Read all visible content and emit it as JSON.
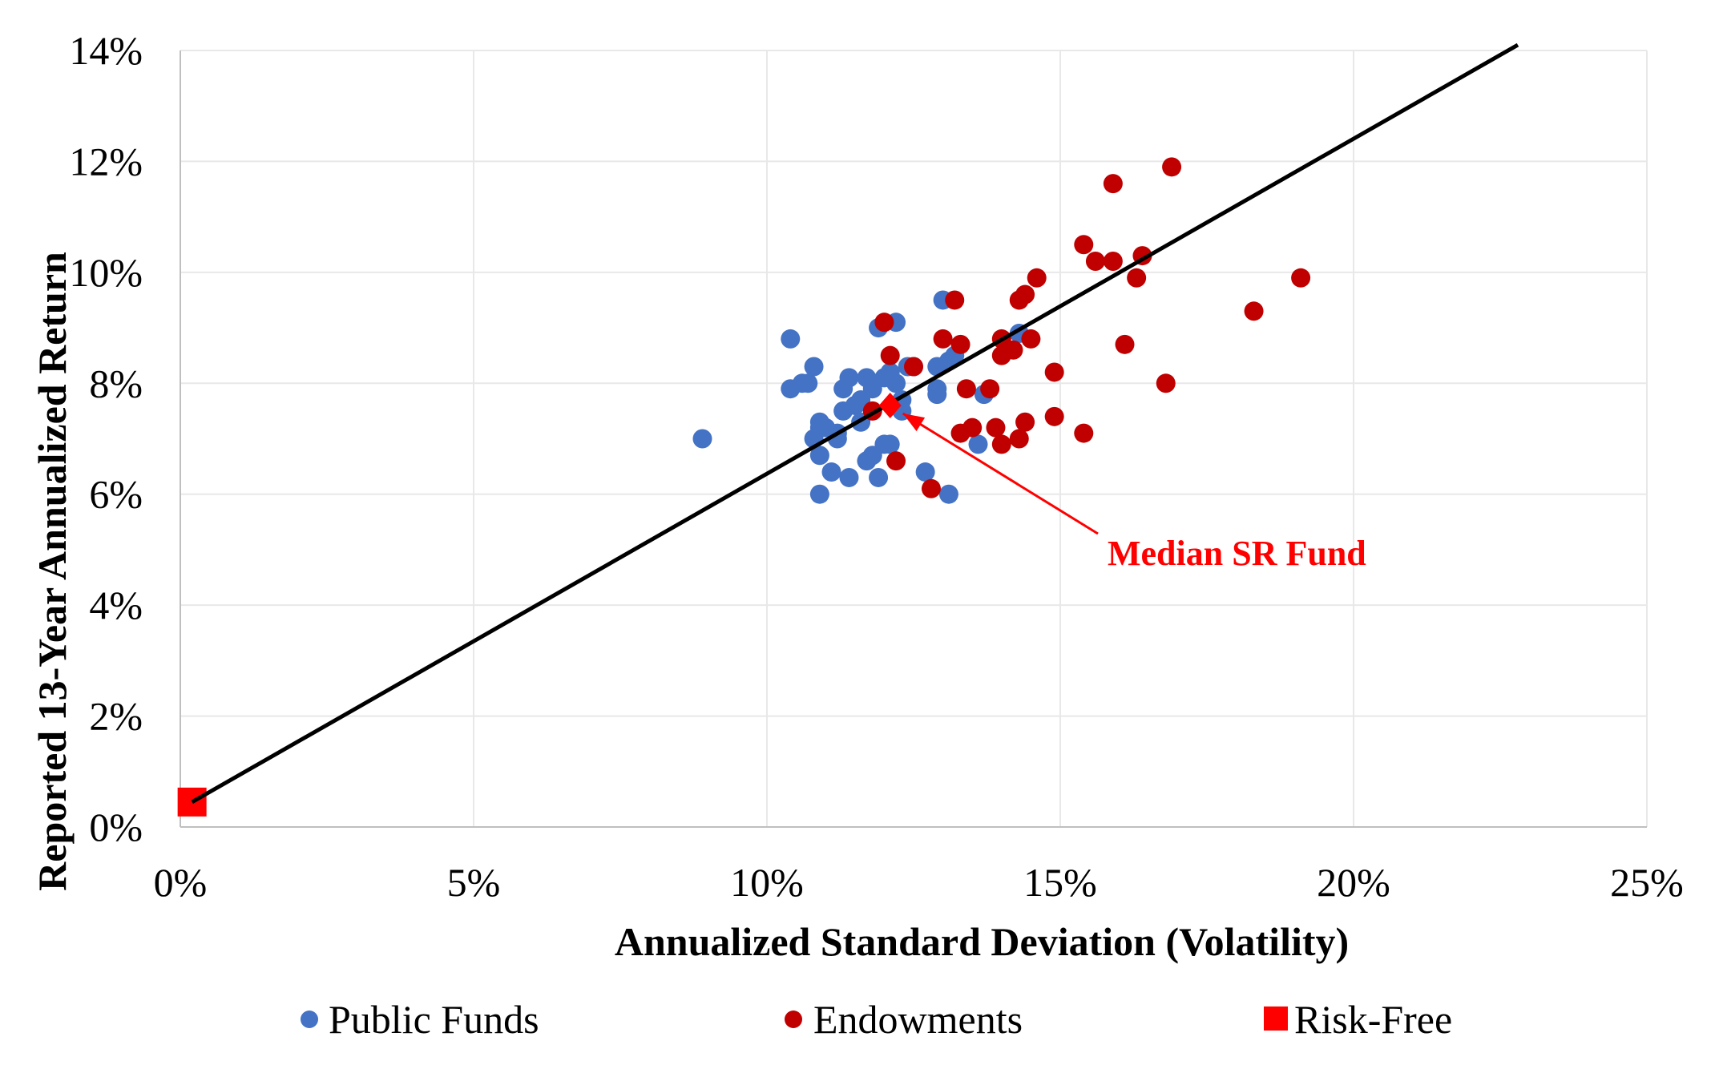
{
  "chart_data": {
    "type": "scatter",
    "title": "",
    "xlabel": "Annualized Standard Deviation (Volatility)",
    "ylabel": "Reported 13-Year Annualized Return",
    "xlim": [
      0,
      25
    ],
    "ylim": [
      0,
      14
    ],
    "x_ticks": [
      "0%",
      "5%",
      "10%",
      "15%",
      "20%",
      "25%"
    ],
    "y_ticks": [
      "0%",
      "2%",
      "4%",
      "6%",
      "8%",
      "10%",
      "12%",
      "14%"
    ],
    "grid": "vertical and horizontal, light",
    "legend_position": "bottom",
    "colors": {
      "public_funds": "#4472C4",
      "endowments": "#C00000",
      "risk_free": "#FF0000",
      "line": "#000000",
      "annotation": "#FF0000",
      "grid": "#E8E8E8",
      "axis": "#BFBFBF"
    },
    "series": [
      {
        "name": "Public Funds",
        "marker": "circle",
        "points": [
          [
            8.9,
            7.0
          ],
          [
            10.4,
            8.8
          ],
          [
            10.4,
            7.9
          ],
          [
            10.6,
            8.0
          ],
          [
            10.7,
            8.0
          ],
          [
            10.8,
            8.3
          ],
          [
            10.8,
            7.0
          ],
          [
            10.9,
            7.2
          ],
          [
            10.9,
            7.3
          ],
          [
            10.9,
            6.7
          ],
          [
            10.9,
            6.0
          ],
          [
            11.0,
            7.2
          ],
          [
            11.1,
            6.4
          ],
          [
            11.2,
            7.1
          ],
          [
            11.2,
            7.0
          ],
          [
            11.3,
            7.5
          ],
          [
            11.3,
            7.9
          ],
          [
            11.4,
            8.1
          ],
          [
            11.4,
            6.3
          ],
          [
            11.5,
            7.6
          ],
          [
            11.6,
            7.3
          ],
          [
            11.6,
            7.7
          ],
          [
            11.7,
            8.1
          ],
          [
            11.7,
            6.6
          ],
          [
            11.8,
            7.9
          ],
          [
            11.8,
            8.0
          ],
          [
            11.8,
            6.7
          ],
          [
            11.9,
            9.0
          ],
          [
            11.9,
            6.3
          ],
          [
            12.0,
            8.1
          ],
          [
            12.0,
            6.9
          ],
          [
            12.1,
            8.2
          ],
          [
            12.1,
            6.9
          ],
          [
            12.2,
            9.1
          ],
          [
            12.2,
            8.0
          ],
          [
            12.3,
            7.7
          ],
          [
            12.3,
            7.5
          ],
          [
            12.4,
            8.3
          ],
          [
            12.5,
            8.3
          ],
          [
            12.7,
            6.4
          ],
          [
            12.9,
            7.9
          ],
          [
            12.9,
            7.8
          ],
          [
            12.9,
            8.3
          ],
          [
            13.0,
            9.5
          ],
          [
            13.1,
            8.4
          ],
          [
            13.1,
            6.0
          ],
          [
            13.2,
            8.5
          ],
          [
            13.6,
            6.9
          ],
          [
            13.7,
            7.8
          ],
          [
            14.3,
            8.9
          ]
        ]
      },
      {
        "name": "Endowments",
        "marker": "circle",
        "points": [
          [
            11.8,
            7.5
          ],
          [
            12.0,
            9.1
          ],
          [
            12.1,
            8.5
          ],
          [
            12.2,
            6.6
          ],
          [
            12.5,
            8.3
          ],
          [
            12.8,
            6.1
          ],
          [
            13.0,
            8.8
          ],
          [
            13.2,
            9.5
          ],
          [
            13.3,
            7.1
          ],
          [
            13.3,
            8.7
          ],
          [
            13.4,
            7.9
          ],
          [
            13.5,
            7.2
          ],
          [
            13.8,
            7.9
          ],
          [
            13.9,
            7.2
          ],
          [
            14.0,
            6.9
          ],
          [
            14.0,
            8.8
          ],
          [
            14.0,
            8.5
          ],
          [
            14.2,
            8.6
          ],
          [
            14.3,
            7.0
          ],
          [
            14.3,
            9.5
          ],
          [
            14.4,
            9.6
          ],
          [
            14.4,
            7.3
          ],
          [
            14.5,
            8.8
          ],
          [
            14.6,
            9.9
          ],
          [
            14.9,
            8.2
          ],
          [
            14.9,
            7.4
          ],
          [
            15.4,
            10.5
          ],
          [
            15.4,
            7.1
          ],
          [
            15.6,
            10.2
          ],
          [
            15.9,
            10.2
          ],
          [
            15.9,
            11.6
          ],
          [
            16.1,
            8.7
          ],
          [
            16.3,
            9.9
          ],
          [
            16.4,
            10.3
          ],
          [
            16.8,
            8.0
          ],
          [
            16.9,
            11.9
          ],
          [
            18.3,
            9.3
          ],
          [
            19.1,
            9.9
          ]
        ]
      },
      {
        "name": "Risk-Free",
        "marker": "square",
        "points": [
          [
            0.2,
            0.45
          ]
        ]
      }
    ],
    "line": {
      "from": [
        0.2,
        0.45
      ],
      "to": [
        22.8,
        14.1
      ]
    },
    "median_point": [
      12.1,
      7.6
    ],
    "annotation": {
      "text": "Median SR Fund"
    }
  }
}
